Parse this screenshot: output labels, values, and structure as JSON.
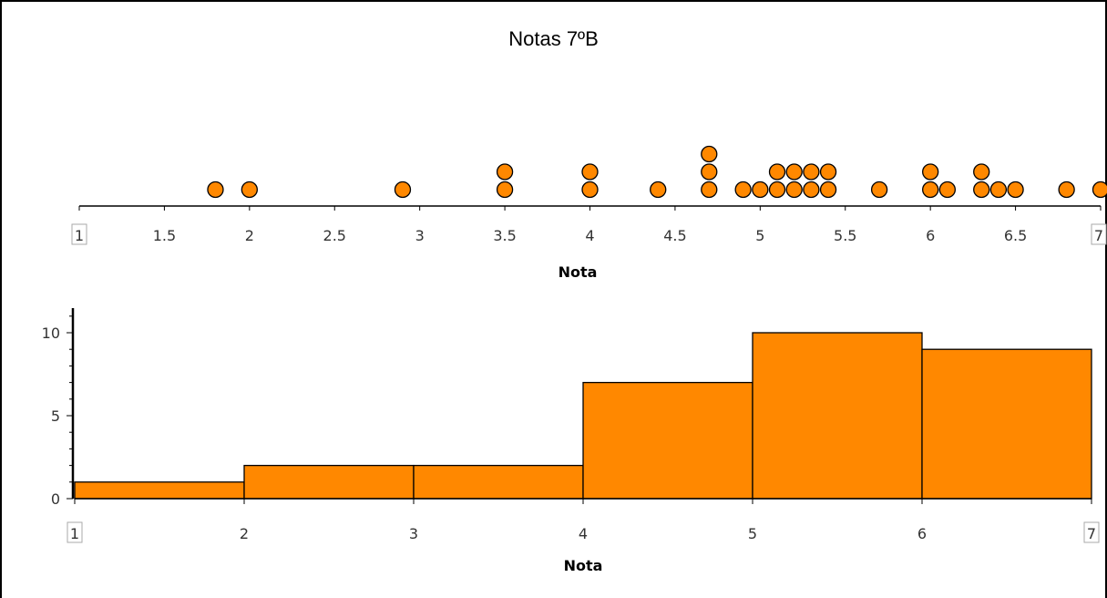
{
  "title": "Notas 7ºB",
  "colors": {
    "fill": "#ff8800",
    "stroke": "#000000",
    "axis": "#000000"
  },
  "chart_data": [
    {
      "type": "scatter",
      "subtype": "dot-plot",
      "xlabel": "Nota",
      "xlim": [
        1,
        7
      ],
      "boxed_ticks": [
        "1",
        "7"
      ],
      "tick_labels": [
        "1",
        "1.5",
        "2",
        "2.5",
        "3",
        "3.5",
        "4",
        "4.5",
        "5",
        "5.5",
        "6",
        "6.5",
        "7"
      ],
      "points": [
        {
          "x": 1.8,
          "count": 1
        },
        {
          "x": 2.0,
          "count": 1
        },
        {
          "x": 2.9,
          "count": 1
        },
        {
          "x": 3.5,
          "count": 2
        },
        {
          "x": 4.0,
          "count": 2
        },
        {
          "x": 4.4,
          "count": 1
        },
        {
          "x": 4.7,
          "count": 3
        },
        {
          "x": 4.9,
          "count": 1
        },
        {
          "x": 5.0,
          "count": 1
        },
        {
          "x": 5.1,
          "count": 2
        },
        {
          "x": 5.2,
          "count": 2
        },
        {
          "x": 5.3,
          "count": 2
        },
        {
          "x": 5.4,
          "count": 2
        },
        {
          "x": 5.7,
          "count": 1
        },
        {
          "x": 6.0,
          "count": 2
        },
        {
          "x": 6.1,
          "count": 1
        },
        {
          "x": 6.3,
          "count": 2
        },
        {
          "x": 6.4,
          "count": 1
        },
        {
          "x": 6.5,
          "count": 1
        },
        {
          "x": 6.8,
          "count": 1
        },
        {
          "x": 7.0,
          "count": 1
        }
      ]
    },
    {
      "type": "bar",
      "subtype": "histogram",
      "xlabel": "Nota",
      "xlim": [
        1,
        7
      ],
      "ylim": [
        0,
        11
      ],
      "x_tick_labels": [
        "1",
        "2",
        "3",
        "4",
        "5",
        "6",
        "7"
      ],
      "boxed_ticks": [
        "1",
        "7"
      ],
      "y_tick_labels": [
        "0",
        "5",
        "10"
      ],
      "bins": [
        {
          "from": 1,
          "to": 2,
          "value": 1
        },
        {
          "from": 2,
          "to": 3,
          "value": 2
        },
        {
          "from": 3,
          "to": 4,
          "value": 2
        },
        {
          "from": 4,
          "to": 5,
          "value": 7
        },
        {
          "from": 5,
          "to": 6,
          "value": 10
        },
        {
          "from": 6,
          "to": 7,
          "value": 9
        }
      ]
    }
  ]
}
